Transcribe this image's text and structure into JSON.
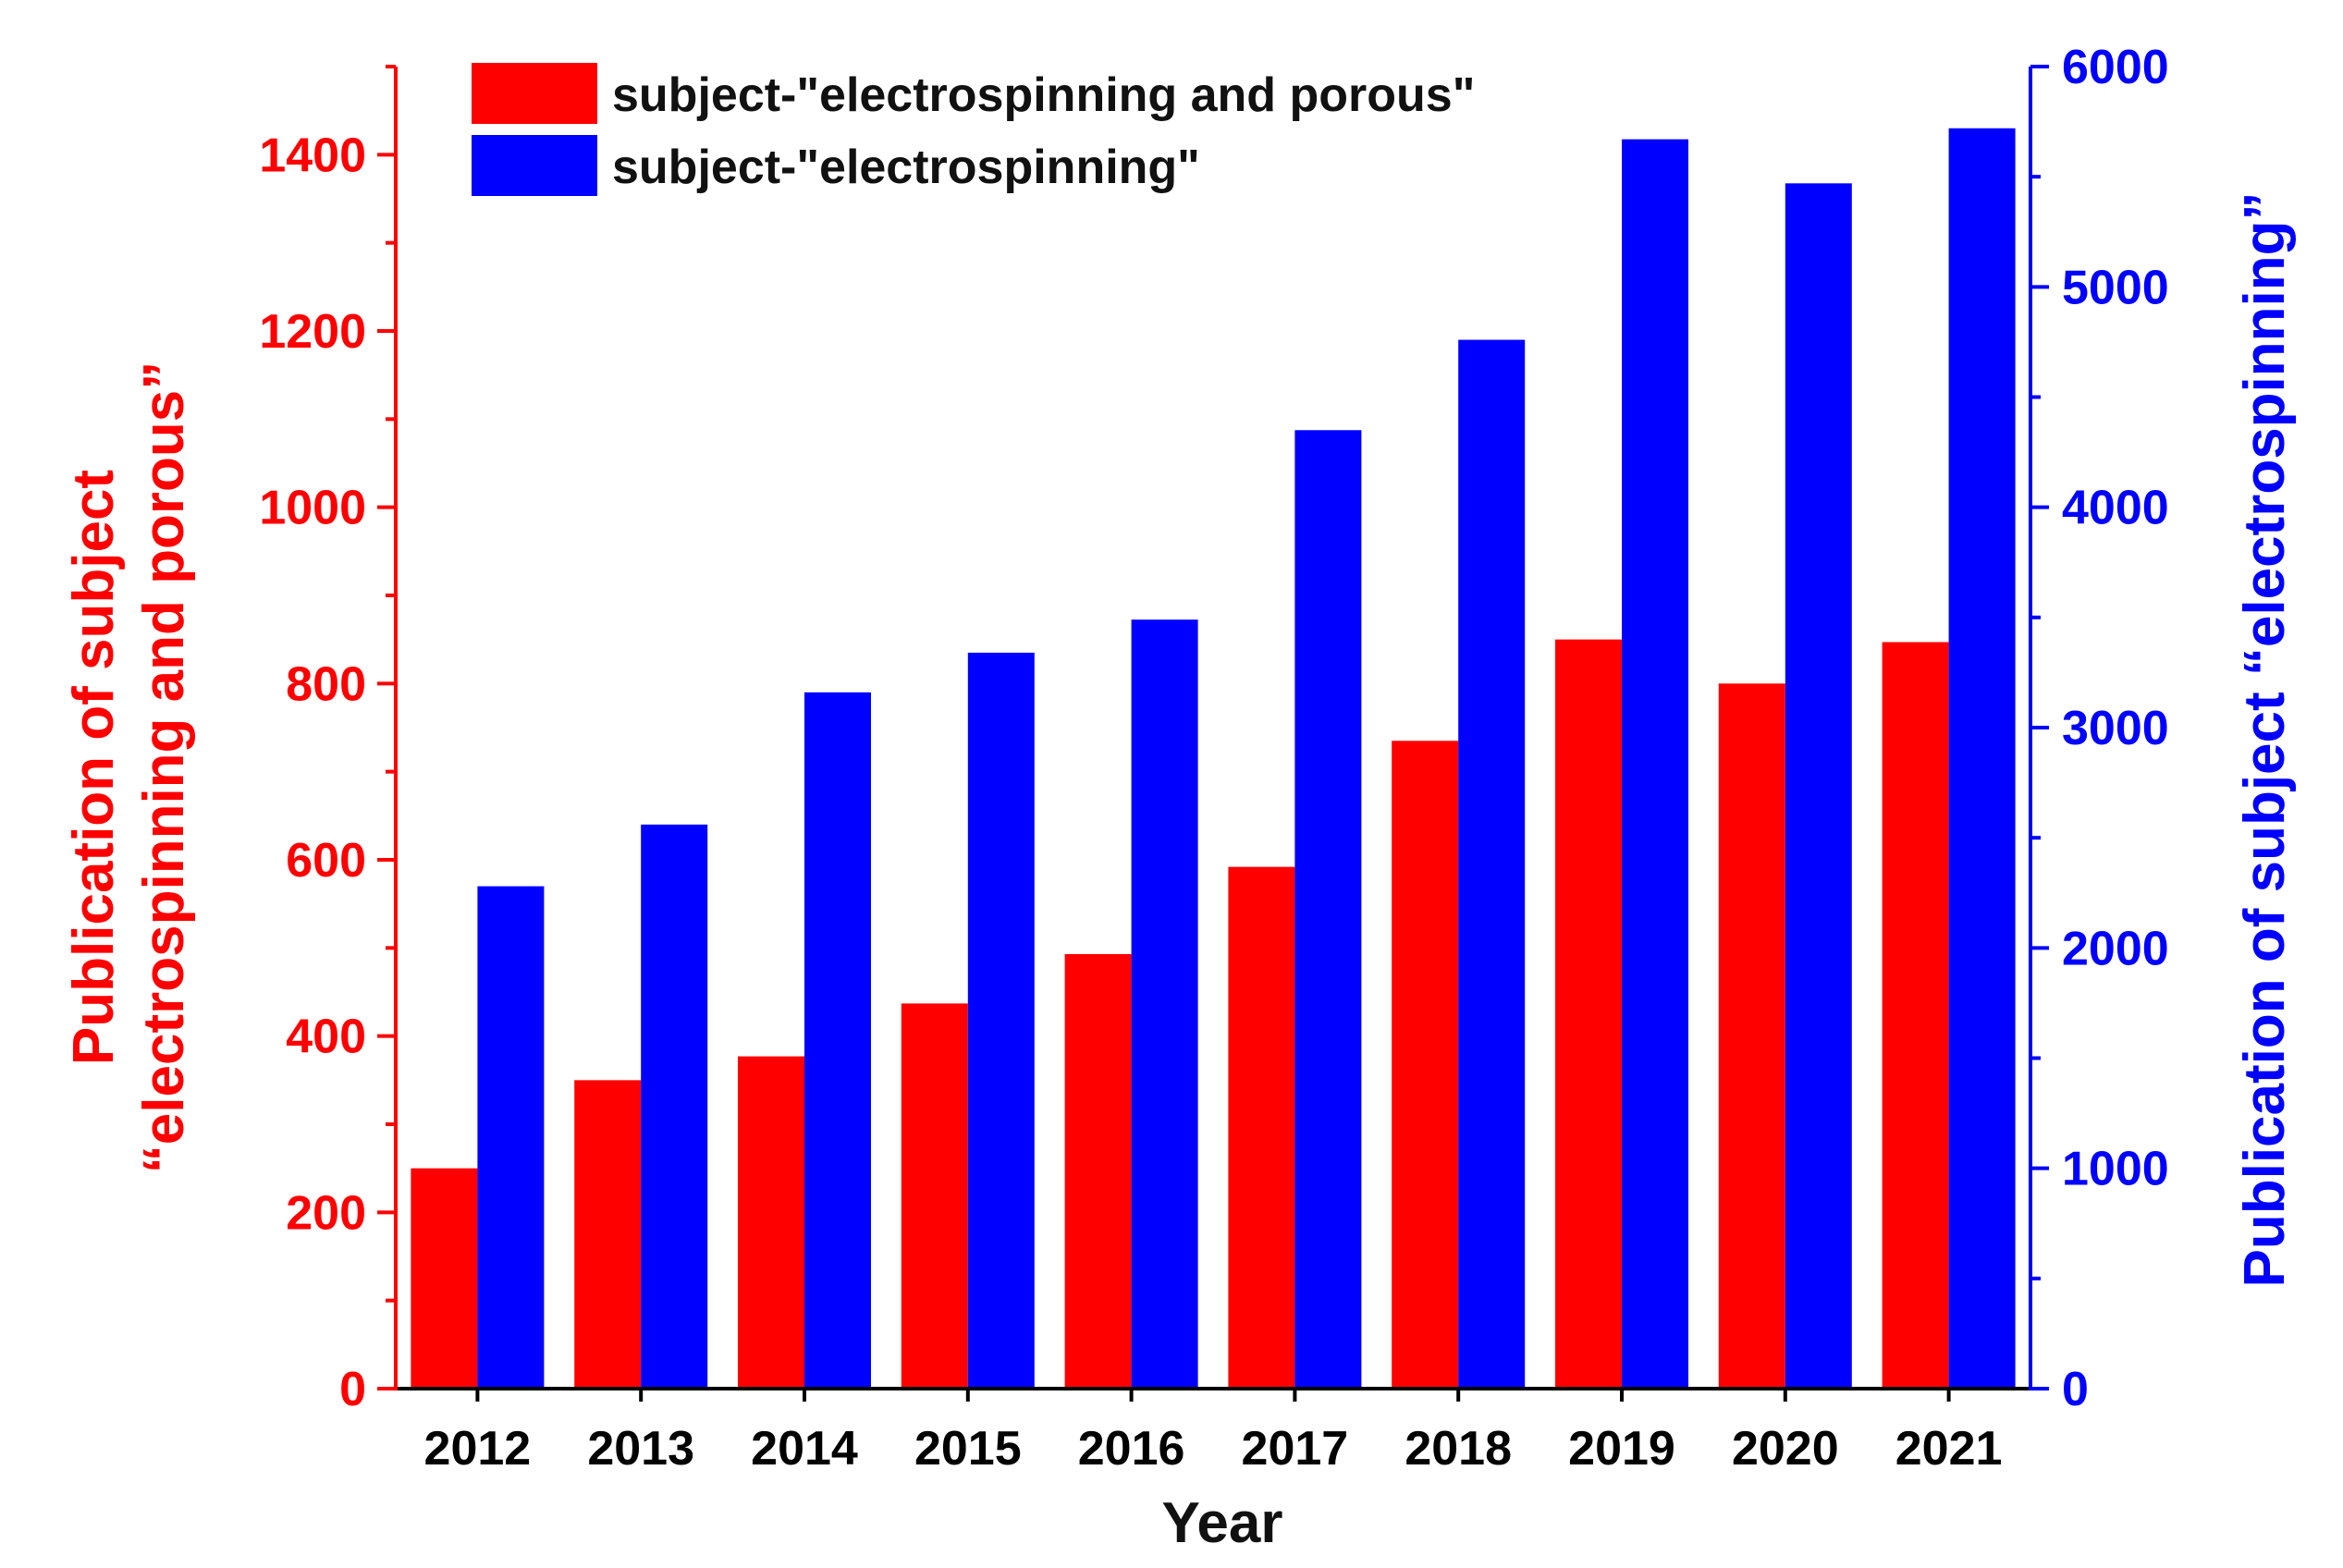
{
  "chart_data": {
    "type": "bar",
    "categories": [
      "2012",
      "2013",
      "2014",
      "2015",
      "2016",
      "2017",
      "2018",
      "2019",
      "2020",
      "2021"
    ],
    "series": [
      {
        "name": "subject-\"electrospinning and porous\"",
        "axis": "left",
        "color": "#ff0000",
        "values": [
          250,
          350,
          377,
          437,
          493,
          592,
          735,
          850,
          800,
          847
        ]
      },
      {
        "name": "subject-\"electrospinning\"",
        "axis": "right",
        "color": "#0000ff",
        "values": [
          2280,
          2560,
          3160,
          3340,
          3490,
          4350,
          4760,
          5670,
          5470,
          5720
        ]
      }
    ],
    "xlabel": "Year",
    "ylabel_left_lines": [
      "Publication of subject",
      "“electrospinning and porous”"
    ],
    "ylabel_right": "Publication of subject “electrospinning”",
    "ylim_left": [
      0,
      1500
    ],
    "ylim_right": [
      0,
      6000
    ],
    "yticks_left": [
      0,
      200,
      400,
      600,
      800,
      1000,
      1200,
      1400
    ],
    "yticks_right": [
      0,
      1000,
      2000,
      3000,
      4000,
      5000,
      6000
    ],
    "left_axis_color": "#ff0000",
    "right_axis_color": "#0000ff",
    "legend_position": "top-left",
    "grid": false
  }
}
